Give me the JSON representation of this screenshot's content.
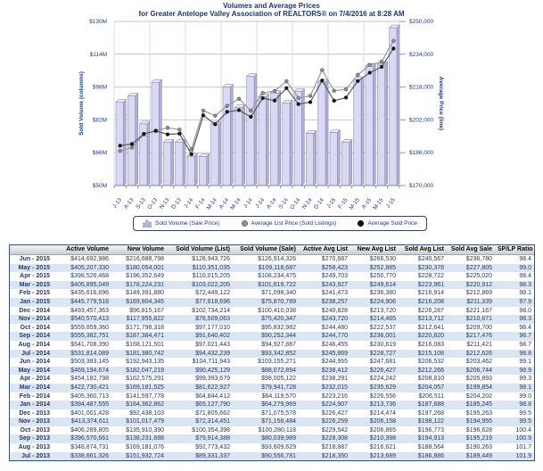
{
  "header": {
    "title": "Volumes and Average Prices",
    "subtitle": "for Greater Antelope Valley Association of REALTORS® on 7/4/2016 at 8:28 AM"
  },
  "colors": {
    "bar_fill": "#d9d9f3",
    "bar_side": "#b0b0d6",
    "bar_top": "#ececf9",
    "bar_edge": "#8d8db5",
    "avg_list_line": "#9a9a9a",
    "avg_list_marker": "#8f8f8f",
    "avg_sold_line": "#5a5a5a",
    "avg_sold_marker": "#111111",
    "axis_text": "#1a3c8c",
    "row_alt": "#dce6f3"
  },
  "chart_data": {
    "type": "bar",
    "title": "Volumes and Average Prices",
    "subtitle": "for Greater Antelope Valley Association of REALTORS® on 7/4/2016 at 8:28 AM",
    "categories": [
      "J-13",
      "A-13",
      "S-13",
      "O-13",
      "N-13",
      "D-13",
      "J-14",
      "F-14",
      "M-14",
      "A-14",
      "M-14",
      "J-14",
      "J-14",
      "A-14",
      "S-14",
      "O-14",
      "N-14",
      "D-14",
      "J-15",
      "F-15",
      "M-15",
      "A-15",
      "M-15",
      "J-15"
    ],
    "left_axis": {
      "label": "Sold Volume (columns)",
      "ticks": [
        "$130M",
        "$114M",
        "$98M",
        "$82M",
        "$66M",
        "$50M"
      ],
      "tick_values": [
        130,
        114,
        98,
        82,
        66,
        50
      ],
      "min": 50,
      "max": 130
    },
    "right_axis": {
      "label": "Average Price (line)",
      "ticks": [
        "$250,000",
        "$234,000",
        "$218,000",
        "$202,000",
        "$186,000",
        "$170,000"
      ],
      "tick_values": [
        250000,
        234000,
        218000,
        202000,
        186000,
        170000
      ],
      "min": 170000,
      "max": 250000
    },
    "grid": true,
    "legend_position": "bottom",
    "legend": [
      "Sold Volume (Sale Price)",
      "Average List Price (Sold Listings)",
      "Average Sold Price"
    ],
    "series": [
      {
        "name": "Sold Volume (Sale Price)",
        "type": "bar",
        "axis": "left",
        "unit": "$M",
        "values": [
          90.56,
          93.61,
          80.04,
          100.28,
          71.16,
          71.08,
          64.28,
          64.12,
          79.94,
          98.01,
          88.07,
          103.16,
          93.34,
          94.93,
          90.25,
          95.83,
          75.42,
          100.41,
          75.87,
          71.1,
          101.62,
          108.23,
          109.12,
          126.91
        ]
      },
      {
        "name": "Average List Price (Sold Listings)",
        "type": "line",
        "axis": "right",
        "unit": "$",
        "values": [
          186886,
          188564,
          194913,
          196773,
          198122,
          197268,
          187688,
          206511,
          204057,
          208810,
          212266,
          206532,
          215108,
          216083,
          220820,
          212641,
          213712,
          226287,
          216208,
          216914,
          223961,
          228722,
          230378,
          240567
        ]
      },
      {
        "name": "Average Sold Price",
        "type": "line",
        "axis": "right",
        "unit": "$",
        "values": [
          189449,
          190263,
          195219,
          196628,
          194955,
          195263,
          185245,
          204202,
          199854,
          205893,
          206744,
          203462,
          212626,
          211421,
          217476,
          209700,
          210671,
          221167,
          211339,
          212869,
          220912,
          225020,
          227805,
          236780
        ]
      }
    ]
  },
  "table": {
    "columns": [
      "",
      "Active Volume",
      "New Volume",
      "Sold Volume (List)",
      "Sold Volume (Sale)",
      "Active Avg List",
      "New Avg List",
      "Sold Avg List",
      "Sold Avg Sale",
      "SP/LP Ratio"
    ],
    "rows": [
      [
        "Jun - 2015",
        "$414,692,986",
        "$216,688,798",
        "$128,943,726",
        "$126,914,326",
        "$270,687",
        "$266,530",
        "$240,567",
        "$236,780",
        "98.4"
      ],
      [
        "May - 2015",
        "$405,207,330",
        "$180,054,001",
        "$110,351,035",
        "$109,118,687",
        "$258,423",
        "$252,885",
        "$230,378",
        "$227,805",
        "99.0"
      ],
      [
        "Apr - 2015",
        "$398,526,468",
        "$196,352,649",
        "$110,015,205",
        "$108,234,475",
        "$249,703",
        "$250,770",
        "$228,722",
        "$225,020",
        "98.4"
      ],
      [
        "Mar - 2015",
        "$405,895,049",
        "$178,224,231",
        "$103,022,205",
        "$101,619,722",
        "$243,927",
        "$249,614",
        "$223,961",
        "$220,912",
        "98.3"
      ],
      [
        "Feb - 2015",
        "$435,616,696",
        "$149,391,880",
        "$72,449,122",
        "$71,098,340",
        "$241,473",
        "$236,380",
        "$216,914",
        "$212,869",
        "98.1"
      ],
      [
        "Jan - 2015",
        "$445,779,518",
        "$169,804,345",
        "$77,618,696",
        "$75,870,789",
        "$238,257",
        "$224,906",
        "$216,208",
        "$211,339",
        "97.9"
      ],
      [
        "Dec - 2014",
        "$493,457,363",
        "$96,815,167",
        "$102,734,214",
        "$100,410,038",
        "$240,828",
        "$213,720",
        "$226,287",
        "$221,167",
        "98.0"
      ],
      [
        "Nov - 2014",
        "$540,570,413",
        "$117,955,822",
        "$76,509,063",
        "$75,420,347",
        "$243,720",
        "$214,465",
        "$213,712",
        "$210,671",
        "98.3"
      ],
      [
        "Oct - 2014",
        "$559,859,360",
        "$171,798,318",
        "$97,177,010",
        "$95,832,982",
        "$244,480",
        "$222,537",
        "$212,641",
        "$209,700",
        "98.4"
      ],
      [
        "Sep - 2014",
        "$555,382,751",
        "$187,384,471",
        "$91,640,402",
        "$90,252,344",
        "$244,770",
        "$236,001",
        "$220,820",
        "$217,476",
        "98.7"
      ],
      [
        "Aug - 2014",
        "$541,708,390",
        "$168,121,501",
        "$97,021,443",
        "$94,927,887",
        "$246,455",
        "$230,619",
        "$216,083",
        "$211,421",
        "98.7"
      ],
      [
        "Jul - 2014",
        "$531,814,089",
        "$181,380,742",
        "$94,432,239",
        "$93,342,852",
        "$245,869",
        "$228,727",
        "$215,108",
        "$212,626",
        "98.8"
      ],
      [
        "Jun - 2014",
        "$503,383,145",
        "$192,943,135",
        "$104,711,943",
        "$103,155,271",
        "$244,955",
        "$247,681",
        "$206,532",
        "$203,462",
        "99.1"
      ],
      [
        "May - 2014",
        "$469,194,674",
        "$182,047,219",
        "$90,425,129",
        "$88,072,894",
        "$238,412",
        "$226,427",
        "$212,266",
        "$206,744",
        "98.9"
      ],
      [
        "Apr - 2014",
        "$454,182,798",
        "$162,575,291",
        "$99,393,679",
        "$98,005,122",
        "$238,291",
        "$224,242",
        "$208,810",
        "$205,893",
        "99.3"
      ],
      [
        "Mar - 2014",
        "$422,730,421",
        "$169,181,525",
        "$81,622,927",
        "$79,941,728",
        "$232,015",
        "$235,629",
        "$204,057",
        "$199,854",
        "98.1"
      ],
      [
        "Feb - 2014",
        "$405,360,713",
        "$141,597,778",
        "$64,844,412",
        "$64,119,570",
        "$223,216",
        "$226,556",
        "$206,511",
        "$204,202",
        "99.0"
      ],
      [
        "Jan - 2014",
        "$394,487,555",
        "$164,362,862",
        "$65,127,790",
        "$64,279,969",
        "$224,907",
        "$213,736",
        "$187,688",
        "$185,245",
        "98.8"
      ],
      [
        "Dec - 2013",
        "$401,001,428",
        "$92,438,103",
        "$71,805,662",
        "$71,075,578",
        "$226,427",
        "$214,474",
        "$197,268",
        "$195,263",
        "99.5"
      ],
      [
        "Nov - 2013",
        "$413,374,611",
        "$101,017,479",
        "$72,314,451",
        "$71,158,484",
        "$226,259",
        "$206,158",
        "$198,122",
        "$194,955",
        "99.5"
      ],
      [
        "Oct - 2013",
        "$406,289,805",
        "$135,910,390",
        "$100,354,398",
        "$100,280,118",
        "$229,542",
        "$206,865",
        "$196,773",
        "$196,628",
        "100.4"
      ],
      [
        "Sep - 2013",
        "$396,570,661",
        "$138,231,688",
        "$79,914,388",
        "$80,039,989",
        "$228,308",
        "$210,398",
        "$194,913",
        "$195,219",
        "100.9"
      ],
      [
        "Aug - 2013",
        "$348,874,731",
        "$169,181,076",
        "$92,773,432",
        "$93,609,629",
        "$218,887",
        "$216,621",
        "$188,564",
        "$190,263",
        "101.7"
      ],
      [
        "Jul - 2013",
        "$338,661,326",
        "$151,932,724",
        "$89,331,337",
        "$90,556,781",
        "$218,350",
        "$213,689",
        "$186,886",
        "$189,449",
        "101.9"
      ]
    ]
  }
}
